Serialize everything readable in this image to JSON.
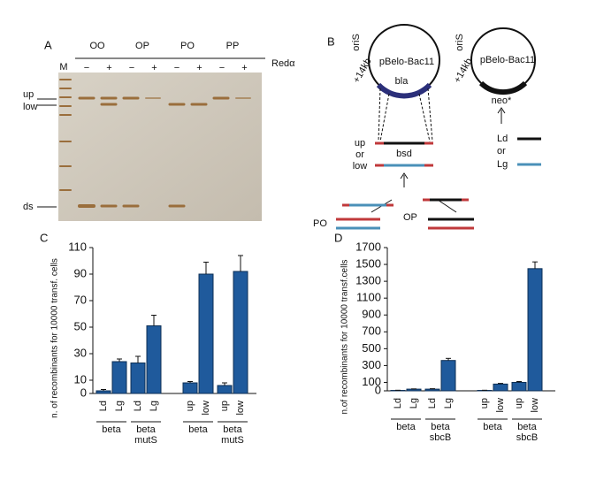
{
  "panel_a": {
    "letter": "A",
    "marker": "M",
    "lanes": [
      "OO",
      "OP",
      "PO",
      "PP"
    ],
    "signs": [
      "−",
      "+",
      "−",
      "+",
      "−",
      "+",
      "−",
      "+"
    ],
    "enzyme": "Redα",
    "bands": [
      "up",
      "low",
      "ds"
    ]
  },
  "panel_b": {
    "letter": "B",
    "plasmid": [
      "pBelo-Bac11",
      "pBelo-Bac11"
    ],
    "ori": [
      "oriS",
      "oriS"
    ],
    "insert": [
      "+14kb",
      "+14kb"
    ],
    "marker1": "bla",
    "marker2": "neo*",
    "product": [
      "up",
      "or",
      "low"
    ],
    "bsd": "bsd",
    "legend": [
      "Ld",
      "or",
      "Lg"
    ],
    "substrates": [
      "PO",
      "OP"
    ]
  },
  "chart_data": [
    {
      "type": "bar",
      "label": "C",
      "ylabel": "n. of recombinants for 10000 transf. cells",
      "categories": [
        "Ld",
        "Lg",
        "Ld",
        "Lg",
        "up",
        "low",
        "up",
        "low"
      ],
      "values": [
        2,
        24,
        23,
        51,
        8,
        90,
        6,
        92
      ],
      "errors": [
        1,
        2,
        5,
        8,
        1,
        9,
        2,
        12
      ],
      "groups": [
        [
          "beta"
        ],
        [
          "beta",
          "mutS"
        ],
        [
          "beta"
        ],
        [
          "beta",
          "mutS"
        ]
      ],
      "color": "#1f5a9c",
      "ylim": [
        0,
        110
      ],
      "yticks": [
        0,
        10,
        30,
        50,
        70,
        90,
        110
      ]
    },
    {
      "type": "bar",
      "label": "D",
      "ylabel": "n.of recombinants for 10000 transf.cells",
      "categories": [
        "Ld",
        "Lg",
        "Ld",
        "Lg",
        "up",
        "low",
        "up",
        "low"
      ],
      "values": [
        5,
        20,
        20,
        360,
        5,
        80,
        100,
        1450
      ],
      "errors": [
        2,
        3,
        5,
        25,
        2,
        8,
        10,
        80
      ],
      "groups": [
        [
          "beta"
        ],
        [
          "beta",
          "sbcB"
        ],
        [
          "beta"
        ],
        [
          "beta",
          "sbcB"
        ]
      ],
      "color": "#1f5a9c",
      "ylim": [
        0,
        1700
      ],
      "yticks": [
        0,
        100,
        300,
        500,
        700,
        900,
        1100,
        1300,
        1500,
        1700
      ]
    }
  ]
}
